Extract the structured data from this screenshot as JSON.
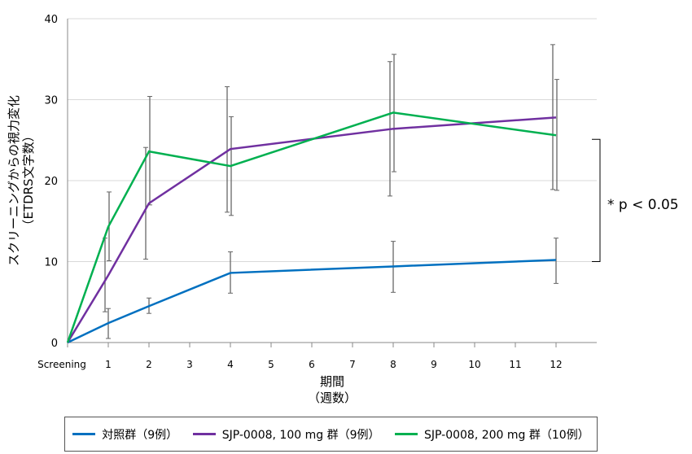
{
  "chart_data": {
    "type": "line",
    "title": "",
    "xlabel": "期間",
    "xlabel_sub": "（週数）",
    "ylabel": "スクリーニングからの視力変化",
    "ylabel_sub": "（ETDRS文字数）",
    "ylim": [
      0,
      40
    ],
    "yticks": [
      0,
      10,
      20,
      30,
      40
    ],
    "xlim": [
      0,
      13
    ],
    "xticks": [
      0,
      1,
      2,
      3,
      4,
      5,
      6,
      7,
      8,
      9,
      10,
      11,
      12
    ],
    "xtick_labels": [
      "Screening",
      "1",
      "2",
      "3",
      "4",
      "5",
      "6",
      "7",
      "8",
      "9",
      "10",
      "11",
      "12"
    ],
    "grid": true,
    "legend_position": "bottom",
    "series": [
      {
        "name": "対照群（9例）",
        "color": "#0070C0",
        "x": [
          0,
          1,
          2,
          4,
          8,
          12
        ],
        "values": [
          0,
          2.4,
          4.5,
          8.6,
          9.4,
          10.2
        ],
        "error_low": [
          null,
          0.5,
          3.6,
          6.1,
          6.2,
          7.3
        ],
        "error_high": [
          null,
          4.2,
          5.5,
          11.2,
          12.5,
          12.9
        ]
      },
      {
        "name": "SJP-0008, 100 mg 群（9例）",
        "color": "#7030A0",
        "x": [
          0,
          1,
          2,
          4,
          8,
          12
        ],
        "values": [
          0,
          8.3,
          17.2,
          23.9,
          26.4,
          27.8
        ],
        "error_low": [
          null,
          3.8,
          10.3,
          16.1,
          18.1,
          18.9
        ],
        "error_high": [
          null,
          12.9,
          24.1,
          31.6,
          34.7,
          36.8
        ]
      },
      {
        "name": "SJP-0008, 200 mg 群（10例）",
        "color": "#00B050",
        "x": [
          0,
          1,
          2,
          4,
          8,
          12
        ],
        "values": [
          0,
          14.3,
          23.6,
          21.8,
          28.4,
          25.6
        ],
        "error_low": [
          null,
          10.1,
          17.0,
          15.7,
          21.1,
          18.8
        ],
        "error_high": [
          null,
          18.6,
          30.4,
          27.9,
          35.6,
          32.5
        ]
      }
    ],
    "annotation": {
      "text": "* p < 0.05",
      "range": [
        10,
        25.1
      ]
    }
  }
}
